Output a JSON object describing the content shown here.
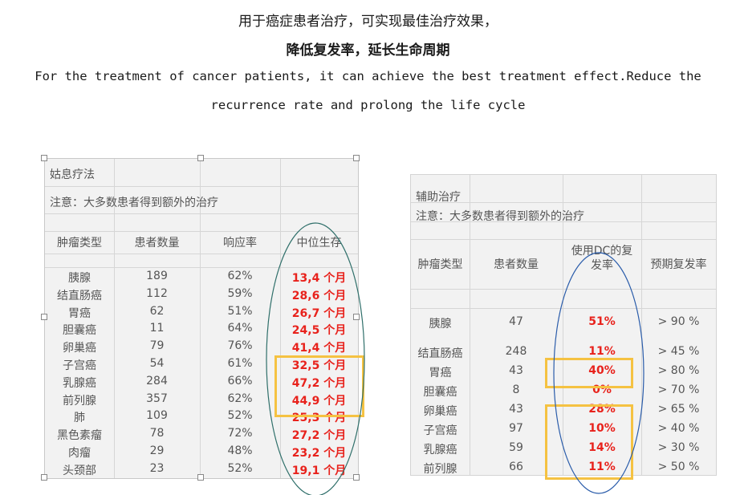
{
  "heading": {
    "line1": "用于癌症患者治疗，可实现最佳治疗效果，",
    "line2": "降低复发率，延长生命周期",
    "en_line1": "For the treatment of cancer patients, it can achieve the best treatment effect.Reduce the",
    "en_line2": "recurrence rate and prolong the life cycle"
  },
  "left_table": {
    "title": "姑息疗法",
    "note": "注意：大多数患者得到额外的治疗",
    "headers": [
      "肿瘤类型",
      "患者数量",
      "响应率",
      "中位生存"
    ],
    "rows": [
      [
        "胰腺",
        "189",
        "62%",
        "13,4 个月"
      ],
      [
        "结直肠癌",
        "112",
        "59%",
        "28,6 个月"
      ],
      [
        "胃癌",
        "62",
        "51%",
        "26,7 个月"
      ],
      [
        "胆囊癌",
        "11",
        "64%",
        "24,5 个月"
      ],
      [
        "卵巢癌",
        "79",
        "76%",
        "41,4 个月"
      ],
      [
        "子宫癌",
        "54",
        "61%",
        "32,5 个月"
      ],
      [
        "乳腺癌",
        "284",
        "66%",
        "47,2 个月"
      ],
      [
        "前列腺",
        "357",
        "62%",
        "44,9 个月"
      ],
      [
        "肺",
        "109",
        "52%",
        "25,3 个月"
      ],
      [
        "黑色素瘤",
        "78",
        "72%",
        "27,2 个月"
      ],
      [
        "肉瘤",
        "29",
        "48%",
        "23,2 个月"
      ],
      [
        "头颈部",
        "23",
        "52%",
        "19,1 个月"
      ]
    ]
  },
  "right_table": {
    "title": "辅助治疗",
    "note": "注意：大多数患者得到额外的治疗",
    "headers": [
      "肿瘤类型",
      "患者数量",
      "使用DC的复发率",
      "预期复发率"
    ],
    "header3_line1": "使用DC的复",
    "header3_line2": "发率",
    "rows": [
      [
        "胰腺",
        "47",
        "51%",
        "> 90 %"
      ],
      [
        "结直肠癌",
        "248",
        "11%",
        "> 45 %"
      ],
      [
        "胃癌",
        "43",
        "40%",
        "> 80 %"
      ],
      [
        "胆囊癌",
        "8",
        "0%",
        "> 70 %"
      ],
      [
        "卵巢癌",
        "43",
        "28%",
        "> 65 %"
      ],
      [
        "子宫癌",
        "97",
        "10%",
        "> 40 %"
      ],
      [
        "乳腺癌",
        "59",
        "14%",
        "> 30 %"
      ],
      [
        "前列腺",
        "66",
        "11%",
        "> 50 %"
      ]
    ]
  },
  "colors": {
    "highlight_red": "#e8221c",
    "box_yellow": "#f5c242",
    "ellipse_teal": "#2f6f6a",
    "ellipse_blue": "#2a5caa"
  }
}
